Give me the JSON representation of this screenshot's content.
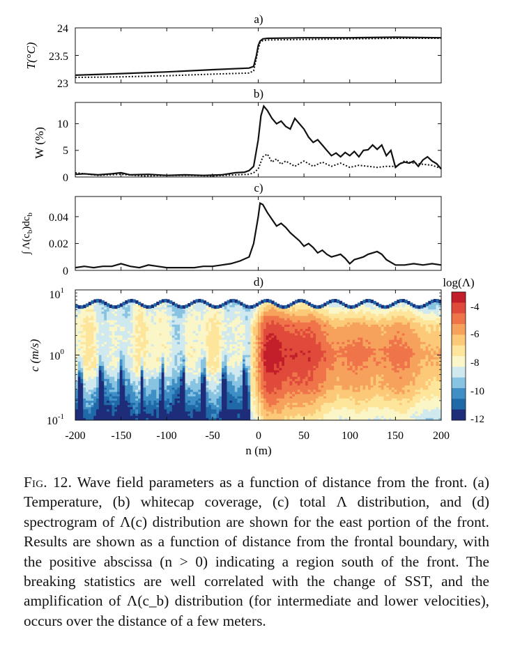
{
  "figure": {
    "panels": [
      {
        "label": "a)",
        "ylabel": "T(°C)",
        "yticks": [
          "23",
          "23.5",
          "24"
        ]
      },
      {
        "label": "b)",
        "ylabel": "W (%)",
        "yticks": [
          "0",
          "5",
          "10"
        ]
      },
      {
        "label": "c)",
        "ylabel": "∫ Λ(c_b)dc_b",
        "yticks": [
          "0",
          "0.02",
          "0.04"
        ]
      },
      {
        "label": "d)",
        "ylabel": "c (m/s)",
        "yticks": [
          "10^-1",
          "10^0",
          "10^1"
        ]
      }
    ],
    "xlabel": "n (m)",
    "xticks": [
      "-200",
      "-150",
      "-100",
      "-50",
      "0",
      "50",
      "100",
      "150",
      "200"
    ],
    "colorbar": {
      "title": "log(Λ)",
      "ticks": [
        "-4",
        "-6",
        "-8",
        "-10",
        "-12"
      ],
      "colors": [
        "#1e2d7a",
        "#2069a8",
        "#3f8fc6",
        "#88c4e2",
        "#cfe9ef",
        "#fbf6c7",
        "#fde59b",
        "#fbc978",
        "#f7a25c",
        "#f0744a",
        "#e04a3a",
        "#c21f2b"
      ]
    }
  },
  "chart_data": [
    {
      "type": "line",
      "panel": "a",
      "title": "a)",
      "xlabel": "",
      "ylabel": "T(°C)",
      "xlim": [
        -200,
        200
      ],
      "ylim": [
        23,
        24
      ],
      "series": [
        {
          "name": "solid",
          "style": "solid",
          "x": [
            -200,
            -150,
            -100,
            -50,
            -10,
            -5,
            -2,
            0,
            2,
            5,
            10,
            50,
            100,
            150,
            200
          ],
          "y": [
            23.14,
            23.17,
            23.2,
            23.24,
            23.27,
            23.3,
            23.5,
            23.68,
            23.76,
            23.8,
            23.81,
            23.82,
            23.82,
            23.83,
            23.82
          ]
        },
        {
          "name": "dotted",
          "style": "dotted",
          "x": [
            -200,
            -150,
            -100,
            -50,
            -10,
            -5,
            -2,
            0,
            2,
            5,
            10,
            50,
            100,
            150,
            200
          ],
          "y": [
            23.1,
            23.11,
            23.13,
            23.16,
            23.18,
            23.22,
            23.45,
            23.62,
            23.73,
            23.77,
            23.78,
            23.79,
            23.8,
            23.81,
            23.81
          ]
        }
      ]
    },
    {
      "type": "line",
      "panel": "b",
      "title": "b)",
      "xlabel": "",
      "ylabel": "W (%)",
      "xlim": [
        -200,
        200
      ],
      "ylim": [
        0,
        14
      ],
      "series": [
        {
          "name": "solid",
          "style": "solid",
          "x": [
            -200,
            -190,
            -175,
            -160,
            -150,
            -140,
            -120,
            -100,
            -80,
            -60,
            -40,
            -25,
            -15,
            -10,
            -5,
            0,
            3,
            6,
            10,
            15,
            20,
            25,
            30,
            35,
            40,
            45,
            50,
            55,
            60,
            65,
            70,
            75,
            80,
            85,
            90,
            95,
            100,
            105,
            110,
            115,
            120,
            125,
            130,
            135,
            140,
            145,
            150,
            155,
            160,
            165,
            170,
            175,
            180,
            185,
            190,
            195,
            200
          ],
          "y": [
            0.5,
            0.6,
            0.4,
            0.6,
            0.8,
            0.4,
            0.5,
            0.3,
            0.4,
            0.3,
            0.4,
            0.8,
            0.9,
            1.2,
            2.0,
            7.0,
            11.5,
            13.3,
            12.5,
            11.0,
            10.0,
            10.5,
            9.5,
            9.0,
            11.0,
            10.0,
            9.0,
            7.5,
            6.5,
            7.0,
            6.0,
            5.0,
            4.0,
            4.5,
            3.8,
            4.6,
            4.0,
            4.8,
            3.8,
            5.0,
            5.1,
            6.0,
            5.2,
            6.0,
            4.0,
            5.0,
            1.8,
            2.5,
            2.8,
            2.6,
            3.0,
            2.0,
            3.2,
            3.8,
            3.0,
            2.5,
            1.5
          ]
        },
        {
          "name": "dotted",
          "style": "dotted",
          "x": [
            -200,
            -175,
            -150,
            -125,
            -100,
            -75,
            -50,
            -25,
            -10,
            -5,
            0,
            5,
            10,
            15,
            20,
            25,
            30,
            40,
            50,
            60,
            70,
            80,
            90,
            100,
            110,
            120,
            130,
            140,
            150,
            160,
            170,
            180,
            190,
            200
          ],
          "y": [
            0.8,
            0.3,
            0.5,
            0.2,
            0.3,
            0.3,
            0.2,
            0.4,
            0.5,
            0.8,
            1.5,
            3.8,
            4.3,
            2.8,
            3.4,
            2.4,
            3.0,
            2.0,
            3.0,
            2.0,
            2.8,
            2.0,
            2.6,
            1.8,
            2.2,
            2.0,
            1.8,
            2.0,
            2.0,
            3.0,
            2.6,
            2.4,
            2.2,
            1.6
          ]
        }
      ]
    },
    {
      "type": "line",
      "panel": "c",
      "title": "c)",
      "xlabel": "",
      "ylabel": "∫ Λ(c_b)dc_b",
      "xlim": [
        -200,
        200
      ],
      "ylim": [
        0,
        0.055
      ],
      "series": [
        {
          "name": "total",
          "style": "solid",
          "x": [
            -200,
            -190,
            -180,
            -170,
            -160,
            -150,
            -140,
            -130,
            -120,
            -110,
            -100,
            -90,
            -80,
            -70,
            -60,
            -50,
            -40,
            -30,
            -20,
            -10,
            -5,
            0,
            2,
            5,
            10,
            15,
            20,
            25,
            30,
            35,
            40,
            45,
            50,
            55,
            60,
            65,
            70,
            75,
            80,
            85,
            90,
            95,
            100,
            105,
            110,
            115,
            120,
            125,
            130,
            135,
            140,
            145,
            150,
            160,
            170,
            180,
            190,
            200
          ],
          "y": [
            0.002,
            0.003,
            0.002,
            0.003,
            0.003,
            0.005,
            0.003,
            0.002,
            0.004,
            0.003,
            0.002,
            0.002,
            0.002,
            0.002,
            0.003,
            0.003,
            0.004,
            0.005,
            0.007,
            0.01,
            0.02,
            0.04,
            0.05,
            0.049,
            0.043,
            0.038,
            0.033,
            0.035,
            0.032,
            0.028,
            0.025,
            0.022,
            0.018,
            0.02,
            0.017,
            0.013,
            0.015,
            0.012,
            0.01,
            0.011,
            0.012,
            0.009,
            0.005,
            0.008,
            0.009,
            0.01,
            0.012,
            0.013,
            0.014,
            0.012,
            0.008,
            0.006,
            0.004,
            0.004,
            0.005,
            0.004,
            0.005,
            0.004
          ]
        }
      ]
    },
    {
      "type": "heatmap",
      "panel": "d",
      "title": "d)",
      "xlabel": "n (m)",
      "ylabel": "c (m/s)",
      "xlim": [
        -200,
        200
      ],
      "ylim": [
        0.1,
        10
      ],
      "yscale": "log",
      "colorbar_label": "log(Λ)",
      "colorbar_range": [
        -12,
        -3
      ]
    }
  ],
  "caption": {
    "prefix": "Fig. 12.",
    "text": "Wave field parameters as a function of distance from the front. (a) Temperature, (b) whitecap coverage, (c) total Λ distribution, and (d) spectrogram of Λ(c) distribution are shown for the east portion of the front. Results are shown as a function of distance from the frontal boundary, with the positive abscissa (n > 0) indicating a region south of the front. The breaking statistics are well correlated with the change of SST, and the amplification of Λ(c_b) distribution (for intermediate and lower velocities), occurs over the distance of a few meters."
  }
}
